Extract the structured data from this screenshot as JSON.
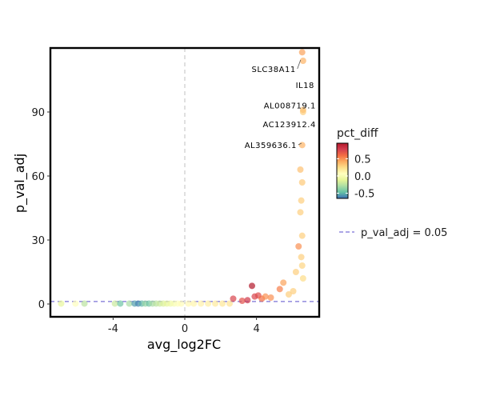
{
  "chart_data": {
    "type": "scatter",
    "xlabel": "avg_log2FC",
    "ylabel": "p_val_adj",
    "xlim": [
      -7.5,
      7.5
    ],
    "ylim": [
      -6,
      120
    ],
    "x_ticks": [
      -4,
      0,
      4
    ],
    "x_tick_labels": [
      "-4",
      "0",
      "4"
    ],
    "y_ticks": [
      0,
      30,
      60,
      90
    ],
    "y_tick_labels": [
      "0",
      "30",
      "60",
      "90"
    ],
    "grid": false,
    "reference_lines": {
      "vertical_x": 0,
      "threshold": {
        "y": 0.05,
        "label": "p_val_adj = 0.05",
        "color": "#7b72d6"
      }
    },
    "colorbar": {
      "title": "pct_diff",
      "range": [
        -0.65,
        0.95
      ],
      "ticks": [
        0.5,
        0.0,
        -0.5
      ],
      "tick_labels": [
        "0.5",
        "0.0",
        "-0.5"
      ],
      "colors": [
        "#3b6fb6",
        "#66c2a5",
        "#abdda4",
        "#e6f598",
        "#ffffbf",
        "#fee08b",
        "#fdae61",
        "#f46d43",
        "#d53e4f",
        "#b2182b"
      ]
    },
    "annotations": [
      {
        "text": "SLC38A11",
        "x": 6.55,
        "y": 114
      },
      {
        "text": "IL18",
        "x": 6.6,
        "y": 114
      },
      {
        "text": "AL008719.1",
        "x": 6.6,
        "y": 91
      },
      {
        "text": "AC123912.4",
        "x": 6.6,
        "y": 90
      },
      {
        "text": "AL359636.1",
        "x": 6.6,
        "y": 75
      }
    ],
    "points": [
      {
        "x": -6.9,
        "y": 0.2,
        "c": -0.1
      },
      {
        "x": -6.1,
        "y": 0.2,
        "c": 0.05
      },
      {
        "x": -5.6,
        "y": 0.2,
        "c": -0.25
      },
      {
        "x": -3.9,
        "y": 0.2,
        "c": -0.2
      },
      {
        "x": -3.6,
        "y": 0.2,
        "c": -0.45
      },
      {
        "x": -3.1,
        "y": 0.2,
        "c": -0.3
      },
      {
        "x": -2.8,
        "y": 0.2,
        "c": -0.55
      },
      {
        "x": -2.6,
        "y": 0.2,
        "c": -0.6
      },
      {
        "x": -2.4,
        "y": 0.2,
        "c": -0.5
      },
      {
        "x": -2.2,
        "y": 0.2,
        "c": -0.35
      },
      {
        "x": -2.0,
        "y": 0.2,
        "c": -0.45
      },
      {
        "x": -1.8,
        "y": 0.2,
        "c": -0.3
      },
      {
        "x": -1.6,
        "y": 0.2,
        "c": -0.25
      },
      {
        "x": -1.4,
        "y": 0.2,
        "c": -0.2
      },
      {
        "x": -1.2,
        "y": 0.2,
        "c": -0.15
      },
      {
        "x": -1.0,
        "y": 0.2,
        "c": -0.1
      },
      {
        "x": -0.8,
        "y": 0.2,
        "c": -0.05
      },
      {
        "x": -0.6,
        "y": 0.2,
        "c": 0.0
      },
      {
        "x": -0.4,
        "y": 0.2,
        "c": 0.05
      },
      {
        "x": -0.2,
        "y": 0.2,
        "c": 0.08
      },
      {
        "x": 0.2,
        "y": 0.2,
        "c": 0.1
      },
      {
        "x": 0.5,
        "y": 0.2,
        "c": 0.12
      },
      {
        "x": 0.9,
        "y": 0.2,
        "c": 0.14
      },
      {
        "x": 1.3,
        "y": 0.2,
        "c": 0.16
      },
      {
        "x": 1.7,
        "y": 0.2,
        "c": 0.18
      },
      {
        "x": 2.1,
        "y": 0.2,
        "c": 0.2
      },
      {
        "x": 2.5,
        "y": 0.2,
        "c": 0.22
      },
      {
        "x": 2.7,
        "y": 2.5,
        "c": 0.75
      },
      {
        "x": 3.2,
        "y": 1.5,
        "c": 0.7
      },
      {
        "x": 3.5,
        "y": 1.8,
        "c": 0.8
      },
      {
        "x": 3.75,
        "y": 8.5,
        "c": 0.95
      },
      {
        "x": 3.9,
        "y": 3.5,
        "c": 0.75
      },
      {
        "x": 4.1,
        "y": 4.0,
        "c": 0.72
      },
      {
        "x": 4.3,
        "y": 2.5,
        "c": 0.6
      },
      {
        "x": 4.5,
        "y": 3.5,
        "c": 0.5
      },
      {
        "x": 4.8,
        "y": 3.0,
        "c": 0.5
      },
      {
        "x": 5.3,
        "y": 7.0,
        "c": 0.55
      },
      {
        "x": 5.5,
        "y": 10.0,
        "c": 0.45
      },
      {
        "x": 5.8,
        "y": 4.5,
        "c": 0.3
      },
      {
        "x": 6.05,
        "y": 6.0,
        "c": 0.3
      },
      {
        "x": 6.2,
        "y": 15.0,
        "c": 0.3
      },
      {
        "x": 6.35,
        "y": 27.0,
        "c": 0.5
      },
      {
        "x": 6.45,
        "y": 63.0,
        "c": 0.35
      },
      {
        "x": 6.55,
        "y": 74.5,
        "c": 0.4
      },
      {
        "x": 6.45,
        "y": 43.0,
        "c": 0.3
      },
      {
        "x": 6.5,
        "y": 48.5,
        "c": 0.3
      },
      {
        "x": 6.55,
        "y": 57.0,
        "c": 0.32
      },
      {
        "x": 6.55,
        "y": 32.0,
        "c": 0.3
      },
      {
        "x": 6.5,
        "y": 22.0,
        "c": 0.3
      },
      {
        "x": 6.55,
        "y": 18.0,
        "c": 0.28
      },
      {
        "x": 6.6,
        "y": 12.0,
        "c": 0.25
      },
      {
        "x": 6.6,
        "y": 90.0,
        "c": 0.3
      },
      {
        "x": 6.6,
        "y": 91.0,
        "c": 0.35
      },
      {
        "x": 6.6,
        "y": 114.0,
        "c": 0.4
      },
      {
        "x": 6.55,
        "y": 118.0,
        "c": 0.45
      }
    ]
  }
}
